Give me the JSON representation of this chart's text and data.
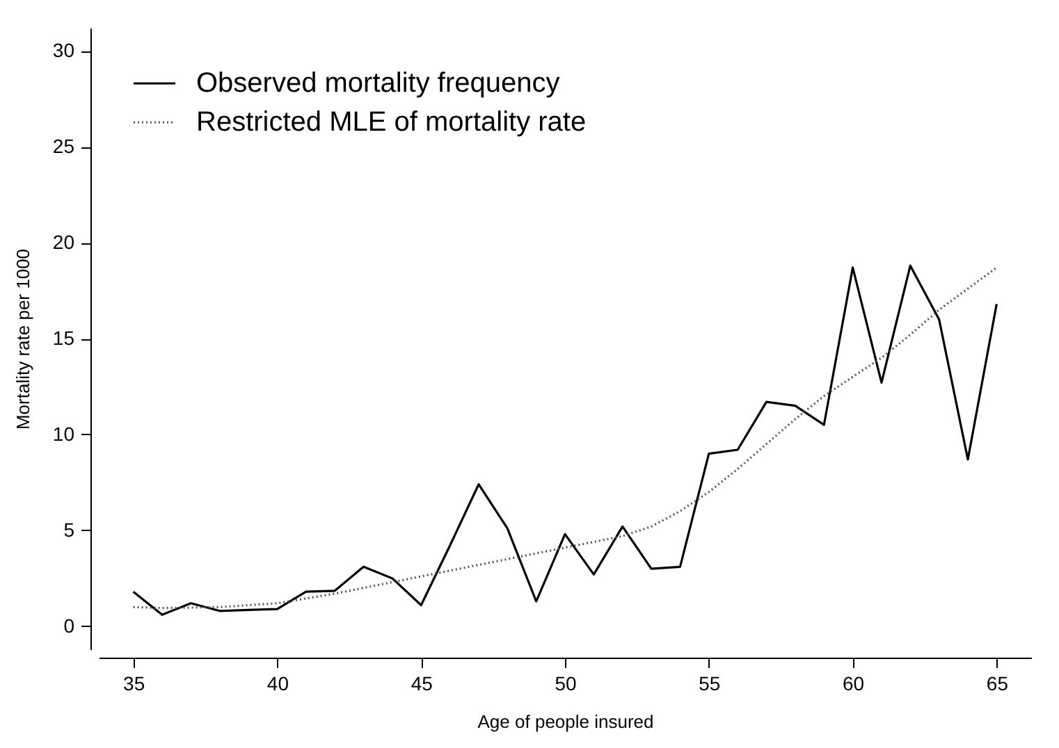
{
  "chart_data": {
    "type": "line",
    "xlabel": "Age of people insured",
    "ylabel": "Mortality rate per 1000",
    "xlim": [
      33.8,
      66.2
    ],
    "xticks": [
      35,
      40,
      45,
      50,
      55,
      60,
      65
    ],
    "ylim": [
      -1.2,
      31.2
    ],
    "yticks": [
      0,
      5,
      10,
      15,
      20,
      25,
      30
    ],
    "grid": false,
    "legend": "top left",
    "marker": "none",
    "series": [
      {
        "name": "Observed mortality frequency",
        "color": "#000000",
        "line_style": "solid",
        "x": [
          35,
          36,
          37,
          38,
          39,
          40,
          41,
          42,
          43,
          44,
          45,
          46,
          47,
          48,
          49,
          50,
          51,
          52,
          53,
          54,
          55,
          56,
          57,
          58,
          59,
          60,
          61,
          62,
          63,
          64,
          65
        ],
        "values": [
          1.8,
          0.6,
          1.2,
          0.8,
          0.85,
          0.9,
          1.8,
          1.85,
          3.1,
          2.5,
          1.1,
          4.2,
          7.4,
          5.1,
          1.3,
          4.8,
          2.7,
          5.2,
          3.0,
          3.1,
          9.0,
          9.2,
          11.7,
          11.5,
          10.5,
          18.7,
          12.7,
          18.8,
          16.0,
          8.7,
          16.8
        ]
      },
      {
        "name": "Restricted MLE of mortality rate",
        "color": "#555555",
        "line_style": "dotted",
        "x": [
          35,
          36,
          38,
          40,
          42,
          44,
          46,
          48,
          50,
          52,
          53,
          54,
          55,
          56,
          57,
          58,
          59,
          60,
          61,
          62,
          63,
          64,
          65
        ],
        "values": [
          1.0,
          0.95,
          1.0,
          1.2,
          1.7,
          2.3,
          2.9,
          3.5,
          4.1,
          4.7,
          5.2,
          6.0,
          7.0,
          8.2,
          9.5,
          10.8,
          12.0,
          13.0,
          14.0,
          15.2,
          16.5,
          17.6,
          18.7
        ]
      }
    ]
  }
}
